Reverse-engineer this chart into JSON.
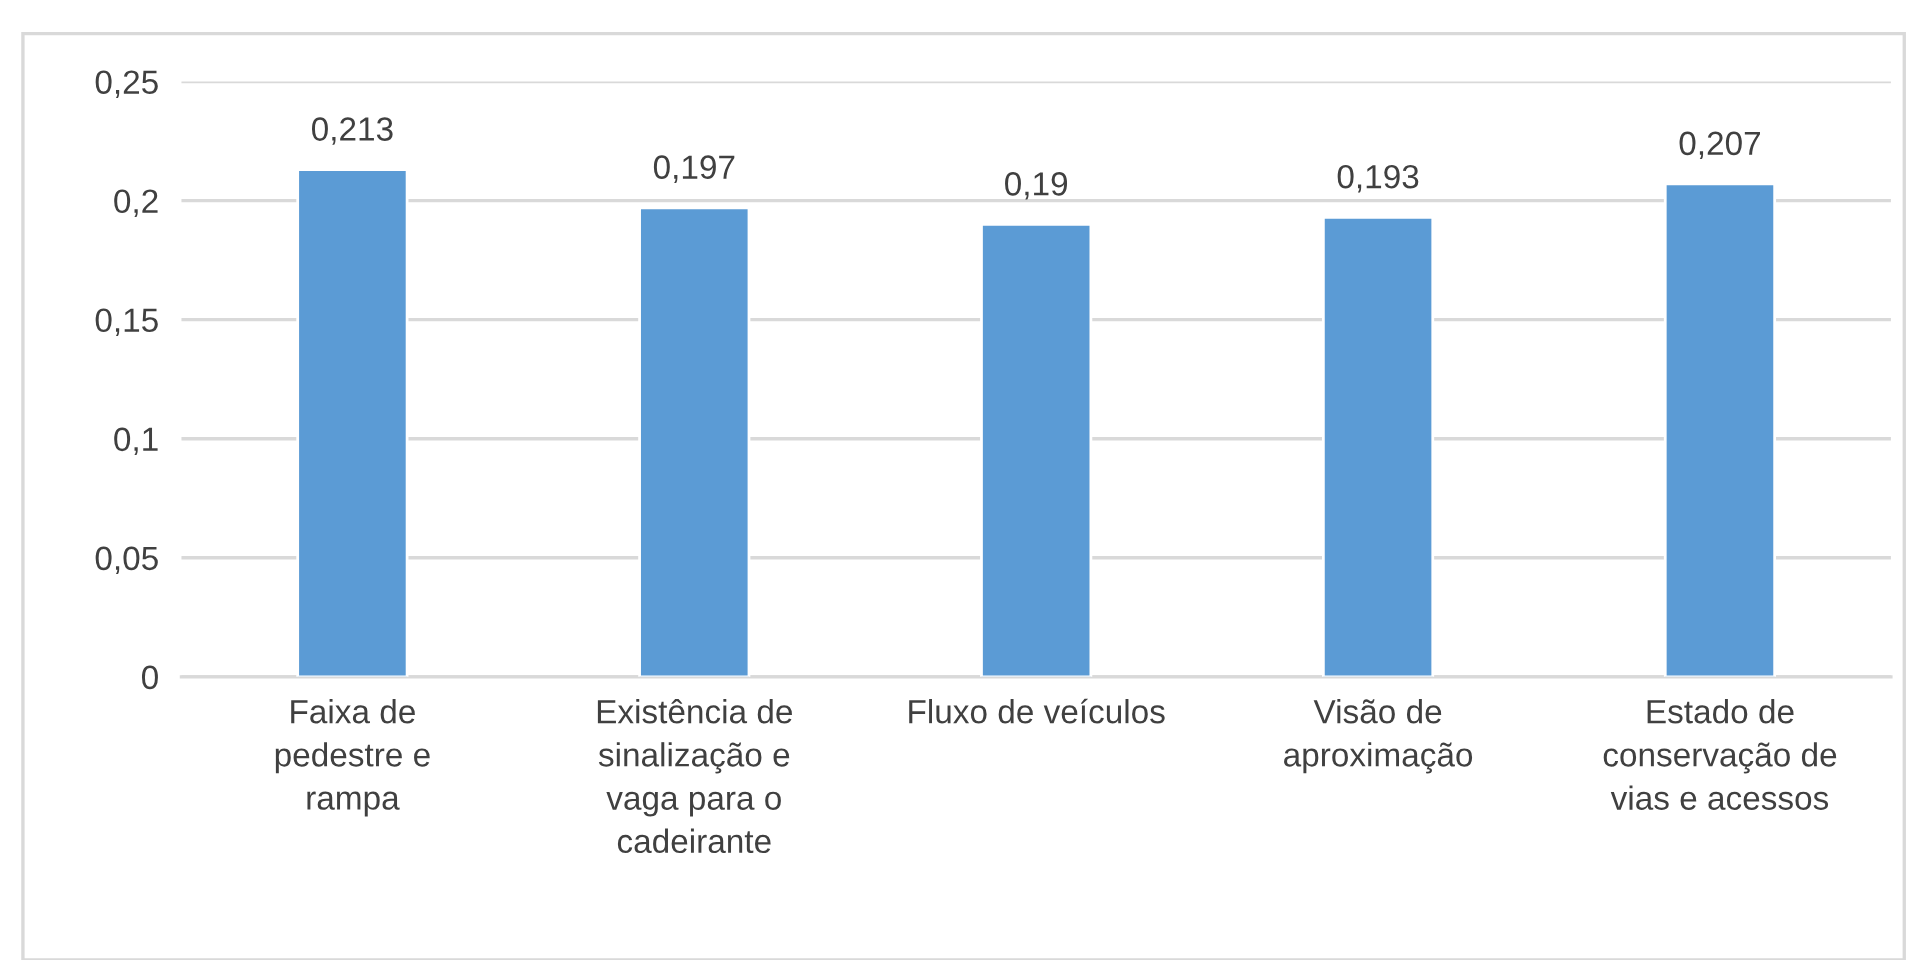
{
  "chart_data": {
    "type": "bar",
    "categories": [
      "Faixa de\npedestre e\nrampa",
      "Existência de\nsinalização e\nvaga para o\ncadeirante",
      "Fluxo de veículos",
      "Visão de\naproximação",
      "Estado de\nconservação de\nvias e acessos"
    ],
    "values": [
      0.213,
      0.197,
      0.19,
      0.193,
      0.207
    ],
    "value_labels": [
      "0,213",
      "0,197",
      "0,19",
      "0,193",
      "0,207"
    ],
    "color": "#5b9bd5",
    "ylim": [
      0,
      0.25
    ],
    "yticks": [
      {
        "value": 0,
        "label": "0"
      },
      {
        "value": 0.05,
        "label": "0,05"
      },
      {
        "value": 0.1,
        "label": "0,1"
      },
      {
        "value": 0.15,
        "label": "0,15"
      },
      {
        "value": 0.2,
        "label": "0,2"
      },
      {
        "value": 0.25,
        "label": "0,25"
      }
    ],
    "grid": "y",
    "legend": false
  }
}
